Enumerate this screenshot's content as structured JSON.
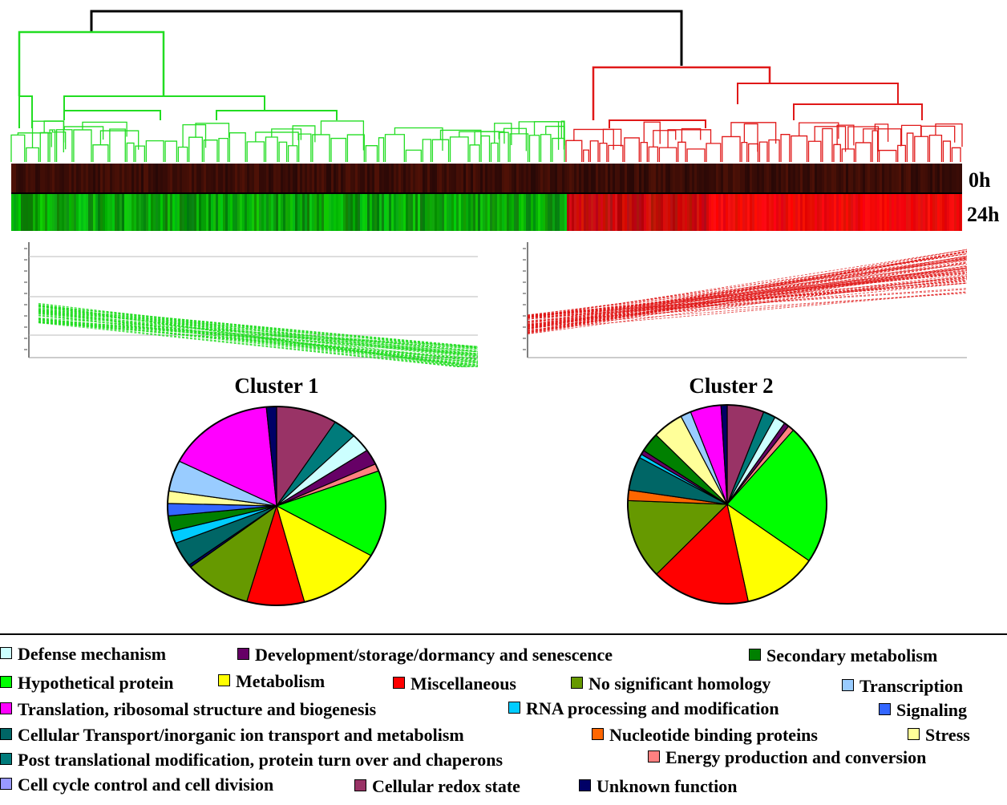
{
  "colors": {
    "cluster1_line": "#22dd22",
    "cluster2_line": "#e01818",
    "root_line": "#000000"
  },
  "heatmap": {
    "rows": [
      "0h",
      "24h"
    ]
  },
  "chart_data": [
    {
      "type": "line",
      "title": "",
      "xlabel": "",
      "ylabel": "",
      "x": [
        "0h",
        "24h"
      ],
      "series_summary": "Cluster 1 expression profiles: all genes decrease from 0h to 24h",
      "start_range": [
        -0.3,
        0.3
      ],
      "end_range": [
        -1.6,
        -0.9
      ],
      "grid": true,
      "color": "#22dd22"
    },
    {
      "type": "line",
      "title": "",
      "xlabel": "",
      "ylabel": "",
      "x": [
        "0h",
        "24h"
      ],
      "series_summary": "Cluster 2 expression profiles: all genes increase from 0h to 24h",
      "start_range": [
        -0.3,
        0.3
      ],
      "end_range": [
        0.9,
        2.3
      ],
      "grid": false,
      "color": "#e01818"
    },
    {
      "type": "pie",
      "title": "Cluster 1",
      "slices": [
        {
          "category": "Cellular redox state",
          "value": 9.0,
          "color": "#993366"
        },
        {
          "category": "Post translational modification, protein turn over and chaperons",
          "value": 3.5,
          "color": "#007b7b"
        },
        {
          "category": "Defense mechanism",
          "value": 3.0,
          "color": "#ccffff"
        },
        {
          "category": "Development/storage/dormancy and senescence",
          "value": 2.5,
          "color": "#660066"
        },
        {
          "category": "Energy production and conversion",
          "value": 1.2,
          "color": "#ff8080"
        },
        {
          "category": "Hypothetical protein",
          "value": 14.0,
          "color": "#00ff00"
        },
        {
          "category": "Metabolism",
          "value": 12.5,
          "color": "#ffff00"
        },
        {
          "category": "Miscellaneous",
          "value": 8.5,
          "color": "#ff0000"
        },
        {
          "category": "No significant homology",
          "value": 10.0,
          "color": "#669900"
        },
        {
          "category": "Unknown function",
          "value": 0.4,
          "color": "#000066"
        },
        {
          "category": "Cellular Transport/inorganic ion transport and metabolism",
          "value": 4.0,
          "color": "#006666"
        },
        {
          "category": "RNA processing and modification",
          "value": 2.0,
          "color": "#00ccff"
        },
        {
          "category": "Secondary metabolism",
          "value": 2.5,
          "color": "#008000"
        },
        {
          "category": "Signaling",
          "value": 2.0,
          "color": "#3366ff"
        },
        {
          "category": "Stress",
          "value": 2.0,
          "color": "#ffff99"
        },
        {
          "category": "Transcription",
          "value": 5.0,
          "color": "#99ccff"
        },
        {
          "category": "Translation, ribosomal structure and biogenesis",
          "value": 16.0,
          "color": "#ff00ff"
        },
        {
          "category": "Unknown function",
          "value": 1.5,
          "color": "#000066"
        }
      ]
    },
    {
      "type": "pie",
      "title": "Cluster 2",
      "slices": [
        {
          "category": "Cellular redox state",
          "value": 6.0,
          "color": "#993366"
        },
        {
          "category": "Post translational modification, protein turn over and chaperons",
          "value": 2.0,
          "color": "#007b7b"
        },
        {
          "category": "Defense mechanism",
          "value": 1.8,
          "color": "#ccffff"
        },
        {
          "category": "Development/storage/dormancy and senescence",
          "value": 0.8,
          "color": "#660066"
        },
        {
          "category": "Energy production and conversion",
          "value": 1.0,
          "color": "#ff8080"
        },
        {
          "category": "Hypothetical protein",
          "value": 23.0,
          "color": "#00ff00"
        },
        {
          "category": "Metabolism",
          "value": 12.0,
          "color": "#ffff00"
        },
        {
          "category": "Miscellaneous",
          "value": 16.0,
          "color": "#ff0000"
        },
        {
          "category": "No significant homology",
          "value": 13.0,
          "color": "#669900"
        },
        {
          "category": "Nucleotide binding proteins",
          "value": 1.7,
          "color": "#ff6600"
        },
        {
          "category": "Cellular Transport/inorganic ion transport and metabolism",
          "value": 5.5,
          "color": "#006666"
        },
        {
          "category": "RNA processing and modification",
          "value": 0.6,
          "color": "#00ccff"
        },
        {
          "category": "Development/storage/dormancy and senescence",
          "value": 0.7,
          "color": "#660066"
        },
        {
          "category": "Secondary metabolism",
          "value": 3.2,
          "color": "#008000"
        },
        {
          "category": "Stress",
          "value": 5.0,
          "color": "#ffff99"
        },
        {
          "category": "Transcription",
          "value": 1.7,
          "color": "#99ccff"
        },
        {
          "category": "Translation, ribosomal structure and biogenesis",
          "value": 5.0,
          "color": "#ff00ff"
        },
        {
          "category": "Unknown function",
          "value": 1.0,
          "color": "#000066"
        }
      ]
    }
  ],
  "legend": [
    {
      "label": "Defense mechanism",
      "color": "#ccffff"
    },
    {
      "label": "Development/storage/dormancy and senescence",
      "color": "#660066"
    },
    {
      "label": "Secondary metabolism",
      "color": "#008000"
    },
    {
      "label": "Hypothetical protein",
      "color": "#00ff00"
    },
    {
      "label": "Metabolism",
      "color": "#ffff00"
    },
    {
      "label": "Miscellaneous",
      "color": "#ff0000"
    },
    {
      "label": "No significant homology",
      "color": "#669900"
    },
    {
      "label": "Transcription",
      "color": "#99ccff"
    },
    {
      "label": "Translation, ribosomal structure and biogenesis",
      "color": "#ff00ff"
    },
    {
      "label": "RNA processing and modification",
      "color": "#00ccff"
    },
    {
      "label": "Signaling",
      "color": "#3366ff"
    },
    {
      "label": "Cellular Transport/inorganic ion transport and metabolism",
      "color": "#006666"
    },
    {
      "label": "Nucleotide binding proteins",
      "color": "#ff6600"
    },
    {
      "label": "Stress",
      "color": "#ffff99"
    },
    {
      "label": "Post translational modification, protein turn over and chaperons",
      "color": "#007b7b"
    },
    {
      "label": "Energy production and conversion",
      "color": "#ff8080"
    },
    {
      "label": "Cell cycle control and cell division",
      "color": "#9999ff"
    },
    {
      "label": "Cellular redox state",
      "color": "#993366"
    },
    {
      "label": "Unknown function",
      "color": "#000066"
    }
  ]
}
